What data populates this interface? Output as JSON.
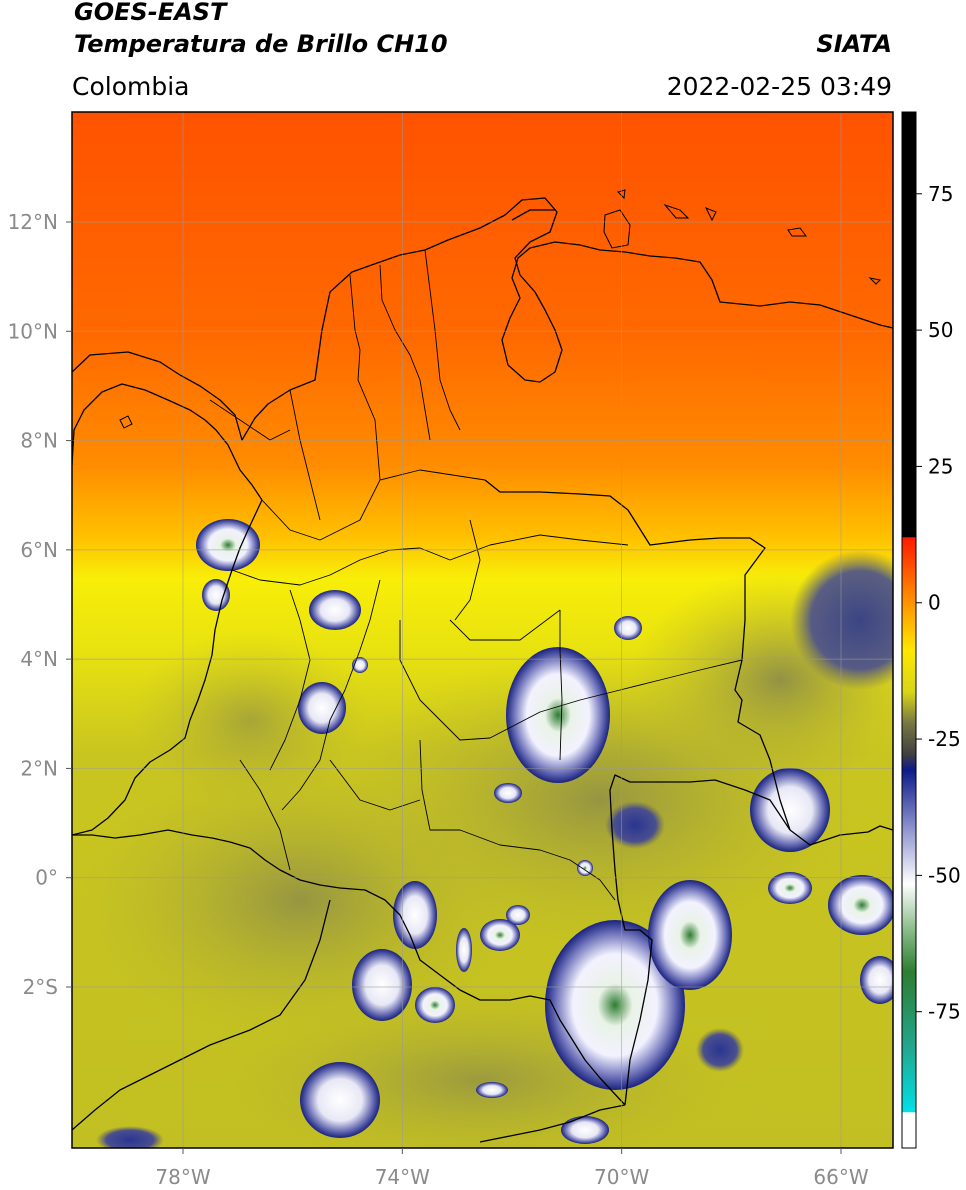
{
  "header": {
    "satellite": "GOES-EAST",
    "product": "Temperatura de Brillo CH10",
    "region": "Colombia",
    "source": "SIATA",
    "datetime": "2022-02-25 03:49"
  },
  "map": {
    "lon_ticks": [
      "78°W",
      "74°W",
      "70°W",
      "66°W"
    ],
    "lat_ticks": [
      "12°N",
      "10°N",
      "8°N",
      "6°N",
      "4°N",
      "2°N",
      "0°",
      "2°S"
    ],
    "lon_values": [
      -78,
      -74,
      -70,
      -66
    ],
    "lat_values": [
      12,
      10,
      8,
      6,
      4,
      2,
      0,
      -2
    ],
    "lon_range": [
      -80,
      -65
    ],
    "lat_range": [
      -5,
      14
    ],
    "gridlines": true,
    "colors": {
      "warm_top": "#ff5a00",
      "orange": "#ff9a00",
      "yellow": "#f2ea0a",
      "olive": "#c7c41e",
      "cloud_navy": "#1a237e",
      "cloud_white": "#f4f4ff",
      "cloud_green": "#2e7d32"
    }
  },
  "colorbar": {
    "ticks": [
      "75",
      "50",
      "25",
      "0",
      "-25",
      "-50",
      "-75"
    ],
    "tick_values": [
      75,
      50,
      25,
      0,
      -25,
      -50,
      -75
    ],
    "range": [
      -100,
      90
    ]
  }
}
